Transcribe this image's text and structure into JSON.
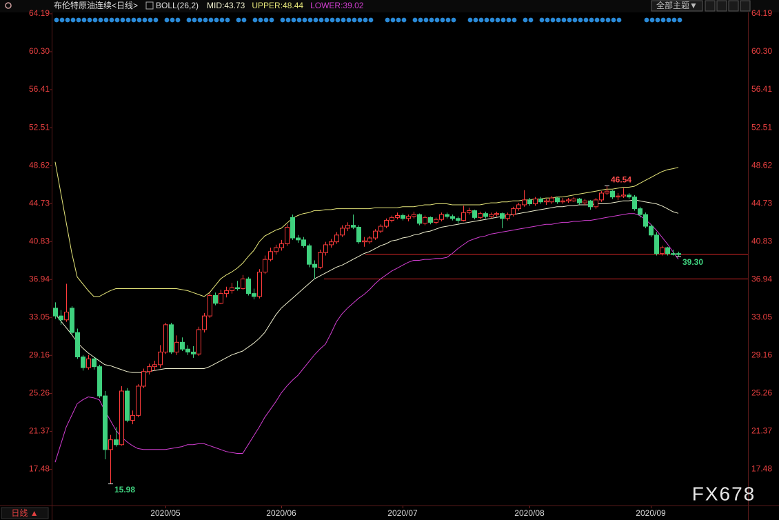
{
  "chart_data": {
    "type": "candlestick",
    "title": "布伦特原油连续<日线>",
    "indicator": "BOLL(26,2)",
    "toolbar_button": "全部主题▼",
    "period_button": "日线 ▲",
    "watermark": "FX678",
    "categories": [
      null,
      null,
      null,
      null,
      null,
      null,
      null,
      null,
      null,
      null,
      null,
      null,
      null,
      null,
      null,
      null,
      null,
      null,
      null,
      null,
      "2020/05",
      null,
      null,
      null,
      null,
      null,
      null,
      null,
      null,
      null,
      null,
      null,
      null,
      null,
      null,
      null,
      null,
      null,
      null,
      null,
      null,
      "2020/06",
      null,
      null,
      null,
      null,
      null,
      null,
      null,
      null,
      null,
      null,
      null,
      null,
      null,
      null,
      null,
      null,
      null,
      null,
      null,
      null,
      null,
      "2020/07",
      null,
      null,
      null,
      null,
      null,
      null,
      null,
      null,
      null,
      null,
      null,
      null,
      null,
      null,
      null,
      null,
      null,
      null,
      null,
      null,
      null,
      null,
      "2020/08",
      null,
      null,
      null,
      null,
      null,
      null,
      null,
      null,
      null,
      null,
      null,
      null,
      null,
      null,
      null,
      null,
      null,
      null,
      null,
      null,
      null,
      "2020/09",
      null,
      null,
      null,
      null,
      null
    ],
    "candles": [
      [
        34.0,
        34.6,
        32.9,
        33.2
      ],
      [
        33.2,
        33.8,
        32.3,
        32.8
      ],
      [
        32.8,
        36.5,
        32.6,
        33.6
      ],
      [
        34.0,
        34.2,
        31.2,
        31.5
      ],
      [
        31.5,
        31.9,
        28.8,
        29.0
      ],
      [
        29.0,
        29.2,
        27.6,
        27.9
      ],
      [
        27.9,
        29.2,
        27.7,
        28.8
      ],
      [
        28.8,
        29.0,
        27.7,
        28.0
      ],
      [
        28.0,
        28.2,
        24.8,
        25.0
      ],
      [
        25.0,
        25.5,
        18.5,
        19.5
      ],
      [
        19.5,
        21.0,
        15.98,
        20.5
      ],
      [
        20.5,
        21.8,
        19.8,
        20.0
      ],
      [
        20.0,
        26.0,
        19.9,
        25.5
      ],
      [
        25.5,
        25.8,
        22.3,
        22.5
      ],
      [
        22.5,
        23.5,
        22.1,
        23.0
      ],
      [
        23.0,
        26.2,
        22.8,
        26.0
      ],
      [
        26.0,
        27.8,
        25.8,
        27.5
      ],
      [
        27.5,
        28.3,
        27.2,
        28.0
      ],
      [
        28.0,
        28.6,
        27.6,
        28.2
      ],
      [
        28.2,
        30.2,
        27.9,
        29.5
      ],
      [
        29.5,
        32.5,
        29.3,
        32.3
      ],
      [
        32.3,
        32.5,
        29.3,
        29.5
      ],
      [
        29.5,
        31.2,
        29.2,
        30.5
      ],
      [
        30.5,
        31.0,
        29.6,
        29.8
      ],
      [
        29.8,
        30.2,
        29.2,
        29.5
      ],
      [
        29.5,
        30.1,
        28.9,
        29.3
      ],
      [
        29.3,
        32.1,
        29.1,
        31.8
      ],
      [
        31.8,
        33.5,
        31.5,
        33.2
      ],
      [
        33.2,
        35.6,
        33.0,
        35.3
      ],
      [
        35.3,
        35.6,
        34.3,
        34.5
      ],
      [
        34.5,
        35.9,
        34.4,
        35.5
      ],
      [
        35.5,
        36.2,
        35.1,
        35.8
      ],
      [
        35.8,
        36.6,
        35.5,
        36.1
      ],
      [
        36.1,
        36.8,
        35.8,
        36.0
      ],
      [
        36.0,
        37.4,
        35.9,
        37.0
      ],
      [
        37.0,
        37.2,
        35.3,
        35.5
      ],
      [
        35.5,
        36.0,
        34.9,
        35.2
      ],
      [
        35.2,
        38.0,
        35.0,
        37.7
      ],
      [
        37.7,
        39.4,
        37.5,
        39.0
      ],
      [
        39.0,
        40.2,
        38.8,
        39.8
      ],
      [
        39.8,
        40.5,
        39.5,
        40.2
      ],
      [
        40.2,
        41.0,
        39.9,
        40.6
      ],
      [
        40.6,
        42.6,
        40.4,
        42.3
      ],
      [
        43.3,
        43.6,
        41.0,
        41.2
      ],
      [
        41.2,
        41.5,
        40.7,
        41.0
      ],
      [
        41.0,
        41.3,
        40.2,
        40.4
      ],
      [
        40.4,
        40.6,
        38.2,
        38.5
      ],
      [
        38.5,
        38.9,
        37.0,
        38.2
      ],
      [
        38.2,
        40.0,
        38.0,
        39.7
      ],
      [
        39.7,
        40.8,
        39.4,
        40.5
      ],
      [
        40.5,
        41.1,
        40.2,
        40.8
      ],
      [
        40.8,
        41.8,
        40.6,
        41.5
      ],
      [
        41.5,
        42.5,
        41.3,
        42.2
      ],
      [
        42.2,
        42.8,
        41.9,
        42.5
      ],
      [
        42.5,
        43.6,
        42.1,
        42.3
      ],
      [
        42.3,
        42.5,
        40.6,
        40.8
      ],
      [
        40.8,
        41.3,
        40.3,
        40.9
      ],
      [
        40.8,
        41.4,
        40.6,
        41.2
      ],
      [
        41.2,
        42.1,
        41.0,
        41.9
      ],
      [
        41.9,
        42.6,
        41.7,
        42.4
      ],
      [
        42.4,
        43.2,
        42.2,
        43.0
      ],
      [
        43.0,
        43.5,
        42.8,
        43.3
      ],
      [
        43.3,
        43.8,
        43.1,
        43.5
      ],
      [
        43.5,
        43.7,
        43.0,
        43.2
      ],
      [
        43.2,
        43.6,
        42.9,
        43.4
      ],
      [
        43.4,
        43.9,
        43.2,
        43.6
      ],
      [
        43.6,
        43.7,
        42.5,
        42.7
      ],
      [
        42.7,
        43.5,
        42.5,
        43.3
      ],
      [
        43.3,
        43.4,
        42.6,
        42.8
      ],
      [
        42.8,
        43.3,
        42.6,
        43.1
      ],
      [
        43.1,
        43.8,
        42.9,
        43.6
      ],
      [
        43.6,
        43.8,
        43.2,
        43.4
      ],
      [
        43.4,
        43.6,
        43.0,
        43.2
      ],
      [
        43.2,
        43.4,
        42.7,
        43.0
      ],
      [
        43.0,
        44.5,
        42.9,
        43.8
      ],
      [
        43.8,
        44.3,
        43.6,
        44.0
      ],
      [
        44.0,
        44.1,
        43.1,
        43.3
      ],
      [
        43.3,
        43.9,
        43.1,
        43.7
      ],
      [
        43.7,
        43.9,
        43.2,
        43.4
      ],
      [
        43.4,
        43.8,
        43.2,
        43.6
      ],
      [
        43.6,
        43.9,
        43.4,
        43.7
      ],
      [
        43.7,
        43.8,
        42.2,
        43.2
      ],
      [
        43.2,
        43.8,
        43.0,
        43.6
      ],
      [
        43.6,
        44.4,
        43.4,
        44.2
      ],
      [
        44.2,
        44.8,
        44.0,
        44.6
      ],
      [
        44.6,
        46.1,
        44.4,
        45.1
      ],
      [
        45.1,
        45.3,
        44.5,
        44.7
      ],
      [
        44.7,
        45.4,
        44.5,
        45.2
      ],
      [
        45.2,
        45.4,
        44.7,
        44.9
      ],
      [
        44.9,
        45.2,
        44.6,
        45.0
      ],
      [
        44.9,
        45.5,
        44.7,
        45.3
      ],
      [
        45.3,
        45.4,
        44.7,
        44.9
      ],
      [
        44.9,
        45.3,
        44.7,
        45.0
      ],
      [
        45.0,
        45.3,
        44.8,
        45.1
      ],
      [
        45.0,
        45.4,
        44.9,
        45.2
      ],
      [
        45.2,
        45.3,
        44.6,
        44.8
      ],
      [
        44.8,
        45.2,
        44.6,
        45.0
      ],
      [
        45.0,
        45.1,
        44.1,
        44.4
      ],
      [
        44.4,
        45.3,
        44.2,
        45.1
      ],
      [
        45.1,
        46.0,
        44.9,
        45.8
      ],
      [
        45.8,
        46.54,
        45.6,
        46.0
      ],
      [
        46.0,
        46.1,
        45.2,
        45.4
      ],
      [
        45.4,
        45.8,
        45.1,
        45.5
      ],
      [
        45.5,
        46.3,
        45.3,
        45.6
      ],
      [
        45.6,
        45.8,
        45.2,
        45.4
      ],
      [
        45.4,
        45.6,
        44.0,
        44.2
      ],
      [
        44.2,
        44.4,
        43.3,
        43.6
      ],
      [
        43.6,
        43.8,
        42.2,
        42.4
      ],
      [
        42.4,
        42.6,
        41.3,
        41.5
      ],
      [
        41.5,
        41.8,
        39.4,
        39.6
      ],
      [
        39.6,
        40.4,
        39.4,
        40.2
      ],
      [
        40.2,
        40.3,
        39.4,
        39.6
      ],
      [
        39.6,
        40.0,
        39.4,
        39.5
      ],
      [
        39.6,
        39.8,
        39.3,
        39.5
      ]
    ],
    "up_color": "#ff3b3b",
    "down_color": "#3fd17e",
    "series": [
      {
        "name": "UPPER:48.44",
        "color": "#e6e67a",
        "values": [
          49.0,
          45.9,
          42.8,
          39.7,
          37.2,
          36.5,
          35.8,
          35.2,
          35.2,
          35.5,
          35.8,
          36.0,
          36.0,
          36.0,
          36.0,
          36.0,
          36.0,
          36.0,
          36.0,
          36.0,
          36.0,
          36.0,
          36.0,
          35.9,
          35.8,
          35.6,
          35.4,
          35.2,
          35.6,
          36.3,
          37.0,
          37.4,
          37.7,
          38.1,
          38.6,
          39.3,
          39.9,
          40.8,
          41.4,
          41.7,
          42.0,
          42.2,
          42.7,
          43.2,
          43.5,
          43.7,
          43.8,
          44.0,
          44.0,
          44.1,
          44.1,
          44.2,
          44.2,
          44.2,
          44.2,
          44.2,
          44.2,
          44.2,
          44.3,
          44.3,
          44.3,
          44.3,
          44.3,
          44.4,
          44.4,
          44.4,
          44.5,
          44.6,
          44.6,
          44.7,
          44.7,
          44.7,
          44.6,
          44.6,
          44.6,
          44.6,
          44.6,
          44.6,
          44.7,
          44.8,
          44.8,
          44.9,
          44.9,
          45.0,
          45.0,
          45.1,
          45.1,
          45.2,
          45.2,
          45.3,
          45.3,
          45.4,
          45.4,
          45.5,
          45.6,
          45.7,
          45.8,
          45.9,
          46.0,
          46.1,
          46.2,
          46.2,
          46.3,
          46.4,
          46.4,
          46.5,
          46.8,
          47.1,
          47.4,
          47.7,
          48.0,
          48.2,
          48.3,
          48.44
        ]
      },
      {
        "name": "MID:43.73",
        "color": "#f0f0d0",
        "values": [
          33.4,
          32.7,
          32.0,
          31.3,
          30.5,
          29.9,
          29.4,
          29.0,
          28.6,
          28.2,
          28.1,
          27.9,
          27.7,
          27.5,
          27.4,
          27.4,
          27.4,
          27.5,
          27.6,
          27.7,
          27.8,
          27.8,
          27.8,
          27.8,
          27.8,
          27.8,
          27.8,
          27.8,
          28.0,
          28.3,
          28.6,
          28.9,
          29.2,
          29.4,
          29.6,
          30.0,
          30.4,
          30.9,
          31.5,
          32.4,
          33.3,
          34.0,
          34.5,
          35.0,
          35.5,
          36.0,
          36.5,
          37.0,
          37.3,
          37.6,
          37.9,
          38.2,
          38.4,
          38.7,
          39.0,
          39.3,
          39.6,
          39.8,
          40.1,
          40.4,
          40.6,
          40.9,
          41.0,
          41.2,
          41.3,
          41.5,
          41.6,
          41.8,
          41.9,
          42.1,
          42.3,
          42.4,
          42.5,
          42.6,
          42.7,
          42.8,
          42.9,
          43.0,
          43.1,
          43.2,
          43.3,
          43.4,
          43.5,
          43.6,
          43.7,
          43.8,
          43.9,
          44.0,
          44.1,
          44.2,
          44.3,
          44.4,
          44.4,
          44.5,
          44.5,
          44.6,
          44.6,
          44.6,
          44.7,
          44.7,
          44.7,
          44.8,
          44.9,
          45.0,
          45.0,
          45.1,
          45.0,
          44.9,
          44.8,
          44.7,
          44.5,
          44.2,
          43.9,
          43.73
        ]
      },
      {
        "name": "LOWER:39.02",
        "color": "#d23ed2",
        "values": [
          18.2,
          20.0,
          21.8,
          23.0,
          24.2,
          24.6,
          24.9,
          24.8,
          24.6,
          23.5,
          22.5,
          21.5,
          20.8,
          20.3,
          19.9,
          19.6,
          19.5,
          19.5,
          19.5,
          19.5,
          19.5,
          19.6,
          19.7,
          19.8,
          20.0,
          20.0,
          20.1,
          20.1,
          19.9,
          19.7,
          19.5,
          19.3,
          19.2,
          19.1,
          19.1,
          20.0,
          20.9,
          21.8,
          22.8,
          23.6,
          24.4,
          25.3,
          26.0,
          26.6,
          27.1,
          27.8,
          28.5,
          29.2,
          29.8,
          30.3,
          31.4,
          32.6,
          33.4,
          34.0,
          34.5,
          35.0,
          35.4,
          35.9,
          36.5,
          37.0,
          37.4,
          37.8,
          38.1,
          38.4,
          38.7,
          38.9,
          38.9,
          39.0,
          39.0,
          39.1,
          39.1,
          39.2,
          39.6,
          40.1,
          40.5,
          40.9,
          41.1,
          41.3,
          41.4,
          41.6,
          41.7,
          41.8,
          41.9,
          42.0,
          42.1,
          42.2,
          42.3,
          42.4,
          42.5,
          42.6,
          42.6,
          42.7,
          42.8,
          42.8,
          42.9,
          42.9,
          43.0,
          43.0,
          43.1,
          43.2,
          43.3,
          43.4,
          43.5,
          43.6,
          43.7,
          43.7,
          43.5,
          43.1,
          42.6,
          42.0,
          41.3,
          40.6,
          39.8,
          39.02
        ]
      }
    ],
    "reference_lines": [
      39.6,
      37.0
    ],
    "reference_color": "#e02828",
    "annotations": [
      {
        "value": 46.54,
        "label": "46.54",
        "color": "#ff4d4d"
      },
      {
        "value": 15.98,
        "label": "15.98",
        "color": "#3fd17e"
      },
      {
        "value": 39.3,
        "label": "39.30",
        "color": "#3fd17e"
      }
    ],
    "ylim": [
      14,
      64.33
    ],
    "yticks": [
      {
        "value": 64.19,
        "label": "64.19"
      },
      {
        "value": 60.3,
        "label": "60.30"
      },
      {
        "value": 56.41,
        "label": "56.41"
      },
      {
        "value": 52.51,
        "label": "52.51"
      },
      {
        "value": 48.62,
        "label": "48.62"
      },
      {
        "value": 44.73,
        "label": "44.73"
      },
      {
        "value": 40.83,
        "label": "40.83"
      },
      {
        "value": 36.94,
        "label": "36.94"
      },
      {
        "value": 33.05,
        "label": "33.05"
      },
      {
        "value": 29.16,
        "label": "29.16"
      },
      {
        "value": 25.26,
        "label": "25.26"
      },
      {
        "value": 21.37,
        "label": "21.37"
      },
      {
        "value": 17.48,
        "label": "17.48"
      }
    ],
    "tick_color": "#e84040"
  }
}
